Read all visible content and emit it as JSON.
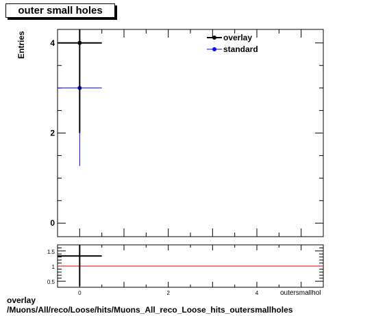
{
  "title": "outer small holes",
  "ylabel": "Entries",
  "xlabel_partial": "outersmallholes",
  "footer": {
    "line1": "overlay",
    "line2": "/Muons/All/reco/Loose/hits/Muons_All_reco_Loose_hits_outersmallholes"
  },
  "colors": {
    "overlay": "#000000",
    "standard": "#0000ff",
    "ratio_line": "#cc0000"
  },
  "chart_data": [
    {
      "type": "scatter",
      "xlim": [
        -0.5,
        5.5
      ],
      "ylim": [
        -0.3,
        4.3
      ],
      "yticks": [
        0,
        2,
        4
      ],
      "xticks": [
        0,
        2,
        4
      ],
      "legend_position": "top-right",
      "series": [
        {
          "name": "overlay",
          "points": [
            {
              "x": 0,
              "xerr": 0.5,
              "y": 4,
              "yerr": 2
            }
          ]
        },
        {
          "name": "standard",
          "points": [
            {
              "x": 0,
              "xerr": 0.5,
              "y": 3,
              "yerr": 1.73
            }
          ]
        }
      ]
    },
    {
      "type": "scatter",
      "xlim": [
        -0.5,
        5.5
      ],
      "ylim": [
        0.3,
        1.7
      ],
      "yticks": [
        0.5,
        1,
        1.5
      ],
      "ytick_labels": [
        "0.5",
        "1",
        "1.5"
      ],
      "xticks": [
        0,
        2,
        4
      ],
      "reference_line": 1,
      "series": [
        {
          "name": "overlay/standard",
          "points": [
            {
              "x": 0,
              "xerr": 0.5,
              "y": 1.333,
              "yerr": 1.0
            }
          ]
        }
      ]
    }
  ]
}
